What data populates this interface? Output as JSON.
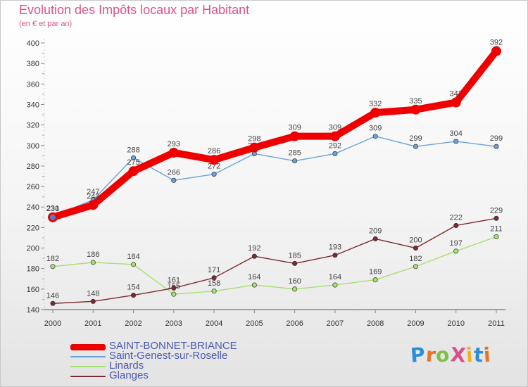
{
  "title": "Evolution des Impôts locaux par Habitant",
  "subtitle": "(en € et par an)",
  "brand": {
    "text": "ProXiti",
    "colors": [
      "#2b8fd6",
      "#e8742a",
      "#7fc241",
      "#d94f8c",
      "#f0b323",
      "#2b8fd6",
      "#e8742a"
    ]
  },
  "chart_data": {
    "type": "line",
    "title": "Evolution des Impôts locaux par Habitant",
    "ylabel": "(en € et par an)",
    "xlabel": "",
    "x": [
      "2000",
      "2001",
      "2002",
      "2003",
      "2004",
      "2005",
      "2006",
      "2007",
      "2008",
      "2009",
      "2010",
      "2011"
    ],
    "ylim": [
      140,
      400
    ],
    "yticks": [
      140,
      160,
      180,
      200,
      220,
      240,
      260,
      280,
      300,
      320,
      340,
      360,
      380,
      400
    ],
    "grid": false,
    "legend_position": "bottom-left",
    "series": [
      {
        "name": "SAINT-BONNET-BRIANCE",
        "color": "#ee0000",
        "emphasis": "thick",
        "values": [
          230,
          242,
          275,
          293,
          286,
          298,
          309,
          309,
          332,
          335,
          342,
          392
        ]
      },
      {
        "name": "Saint-Genest-sur-Roselle",
        "color": "#6aa2d8",
        "emphasis": "normal",
        "values": [
          231,
          247,
          288,
          266,
          272,
          292,
          285,
          292,
          309,
          299,
          304,
          299
        ]
      },
      {
        "name": "Linards",
        "color": "#a6e070",
        "emphasis": "normal",
        "values": [
          182,
          186,
          184,
          155,
          158,
          164,
          160,
          164,
          169,
          182,
          197,
          211
        ]
      },
      {
        "name": "Glanges",
        "color": "#7a2a30",
        "emphasis": "normal",
        "values": [
          146,
          148,
          154,
          161,
          171,
          192,
          185,
          193,
          209,
          200,
          222,
          229
        ]
      }
    ]
  }
}
